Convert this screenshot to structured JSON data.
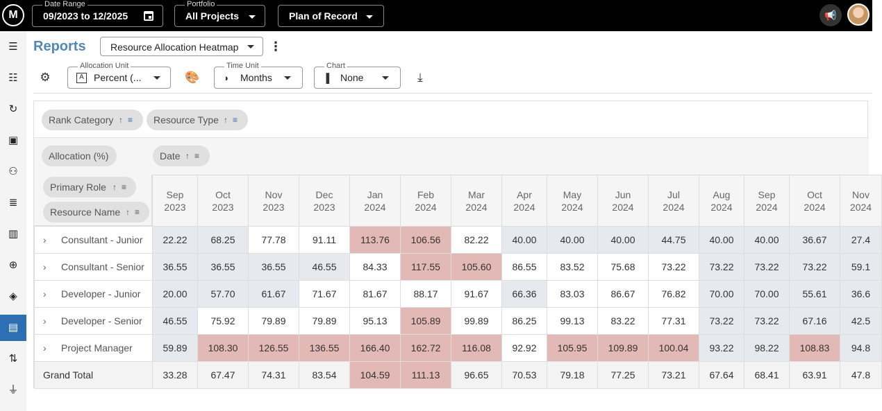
{
  "topbar": {
    "logo_text": "M",
    "date_range": {
      "label": "Date Range",
      "value": "09/2023 to 12/2025"
    },
    "portfolio": {
      "label": "Portfolio",
      "value": "All Projects"
    },
    "scenario": {
      "value": "Plan of Record"
    }
  },
  "sidebar": {
    "items": [
      {
        "name": "menu",
        "glyph": "☰"
      },
      {
        "name": "people",
        "glyph": "☷"
      },
      {
        "name": "cycle",
        "glyph": "↻"
      },
      {
        "name": "badge",
        "glyph": "▣"
      },
      {
        "name": "team",
        "glyph": "⚇"
      },
      {
        "name": "list",
        "glyph": "≣"
      },
      {
        "name": "board",
        "glyph": "▥"
      },
      {
        "name": "target",
        "glyph": "⊕"
      },
      {
        "name": "directions",
        "glyph": "◈"
      },
      {
        "name": "reports",
        "glyph": "▤",
        "active": true
      },
      {
        "name": "swap",
        "glyph": "⇅"
      },
      {
        "name": "plug",
        "glyph": "⏚"
      }
    ]
  },
  "reports": {
    "title": "Reports",
    "report_type": "Resource Allocation Heatmap",
    "more_glyph": "⋮"
  },
  "controls": {
    "allocation_unit": {
      "label": "Allocation Unit",
      "value": "Percent (..."
    },
    "time_unit": {
      "label": "Time Unit",
      "value": "Months"
    },
    "chart": {
      "label": "Chart",
      "value": "None"
    }
  },
  "pivot": {
    "filter_chips": [
      "Rank Category",
      "Resource Type"
    ],
    "value_chip": "Allocation (%)",
    "column_chip": "Date",
    "row_chips": [
      "Primary Role",
      "Resource Name"
    ],
    "columns": [
      {
        "month": "Sep",
        "year": "2023"
      },
      {
        "month": "Oct",
        "year": "2023"
      },
      {
        "month": "Nov",
        "year": "2023"
      },
      {
        "month": "Dec",
        "year": "2023"
      },
      {
        "month": "Jan",
        "year": "2024"
      },
      {
        "month": "Feb",
        "year": "2024"
      },
      {
        "month": "Mar",
        "year": "2024"
      },
      {
        "month": "Apr",
        "year": "2024"
      },
      {
        "month": "May",
        "year": "2024"
      },
      {
        "month": "Jun",
        "year": "2024"
      },
      {
        "month": "Jul",
        "year": "2024"
      },
      {
        "month": "Aug",
        "year": "2024"
      },
      {
        "month": "Sep",
        "year": "2024"
      },
      {
        "month": "Oct",
        "year": "2024"
      },
      {
        "month": "Nov",
        "year": "2024"
      }
    ],
    "rows": [
      {
        "label": "Consultant - Junior",
        "values": [
          "22.22",
          "68.25",
          "77.78",
          "91.11",
          "113.76",
          "106.56",
          "82.22",
          "40.00",
          "40.00",
          "40.00",
          "44.75",
          "40.00",
          "40.00",
          "36.67",
          "27.4"
        ]
      },
      {
        "label": "Consultant - Senior",
        "values": [
          "36.55",
          "36.55",
          "36.55",
          "46.55",
          "84.33",
          "117.55",
          "105.60",
          "86.55",
          "83.52",
          "75.68",
          "73.22",
          "73.22",
          "73.22",
          "73.22",
          "59.1"
        ]
      },
      {
        "label": "Developer - Junior",
        "values": [
          "20.00",
          "57.70",
          "61.67",
          "71.67",
          "81.67",
          "88.17",
          "91.67",
          "66.36",
          "83.03",
          "86.67",
          "76.82",
          "70.00",
          "70.00",
          "55.61",
          "36.6"
        ]
      },
      {
        "label": "Developer - Senior",
        "values": [
          "46.55",
          "75.92",
          "79.89",
          "79.89",
          "95.13",
          "105.89",
          "99.89",
          "86.25",
          "99.13",
          "83.22",
          "77.31",
          "73.22",
          "73.22",
          "67.16",
          "42.5"
        ]
      },
      {
        "label": "Project Manager",
        "values": [
          "59.89",
          "108.30",
          "126.55",
          "136.55",
          "166.40",
          "162.72",
          "116.08",
          "92.92",
          "105.95",
          "109.89",
          "100.04",
          "93.22",
          "98.22",
          "108.83",
          "94.8"
        ]
      }
    ],
    "grand_total": {
      "label": "Grand Total",
      "values": [
        "33.28",
        "67.47",
        "74.31",
        "83.54",
        "104.59",
        "111.13",
        "96.65",
        "70.53",
        "79.18",
        "77.25",
        "73.21",
        "67.64",
        "68.41",
        "63.91",
        "47.8"
      ]
    },
    "heat_colors": {
      "over": "#e3b9b5",
      "low": "#e6e9ee",
      "normal": "#ffffff"
    }
  }
}
